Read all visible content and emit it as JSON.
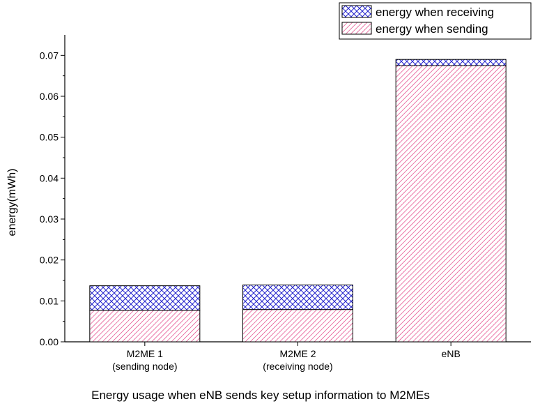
{
  "chart_data": {
    "type": "bar",
    "stacked": true,
    "categories": [
      "M2ME 1\n(sending node)",
      "M2ME 2\n(receiving node)",
      "eNB"
    ],
    "series": [
      {
        "name": "energy when sending",
        "values": [
          0.0077,
          0.0079,
          0.0675
        ],
        "color": "#e0307a",
        "pattern": "diagonal-hatch"
      },
      {
        "name": "energy when receiving",
        "values": [
          0.006,
          0.006,
          0.0015
        ],
        "color": "#2222cc",
        "pattern": "cross-hatch"
      }
    ],
    "xlabel": "Energy usage when eNB sends key setup information to M2MEs",
    "ylabel": "energy(mWh)",
    "ylim": [
      0,
      0.075
    ],
    "yticks": [
      "0.00",
      "0.01",
      "0.02",
      "0.03",
      "0.04",
      "0.05",
      "0.06",
      "0.07"
    ],
    "grid": false,
    "legend_position": "top-right"
  }
}
